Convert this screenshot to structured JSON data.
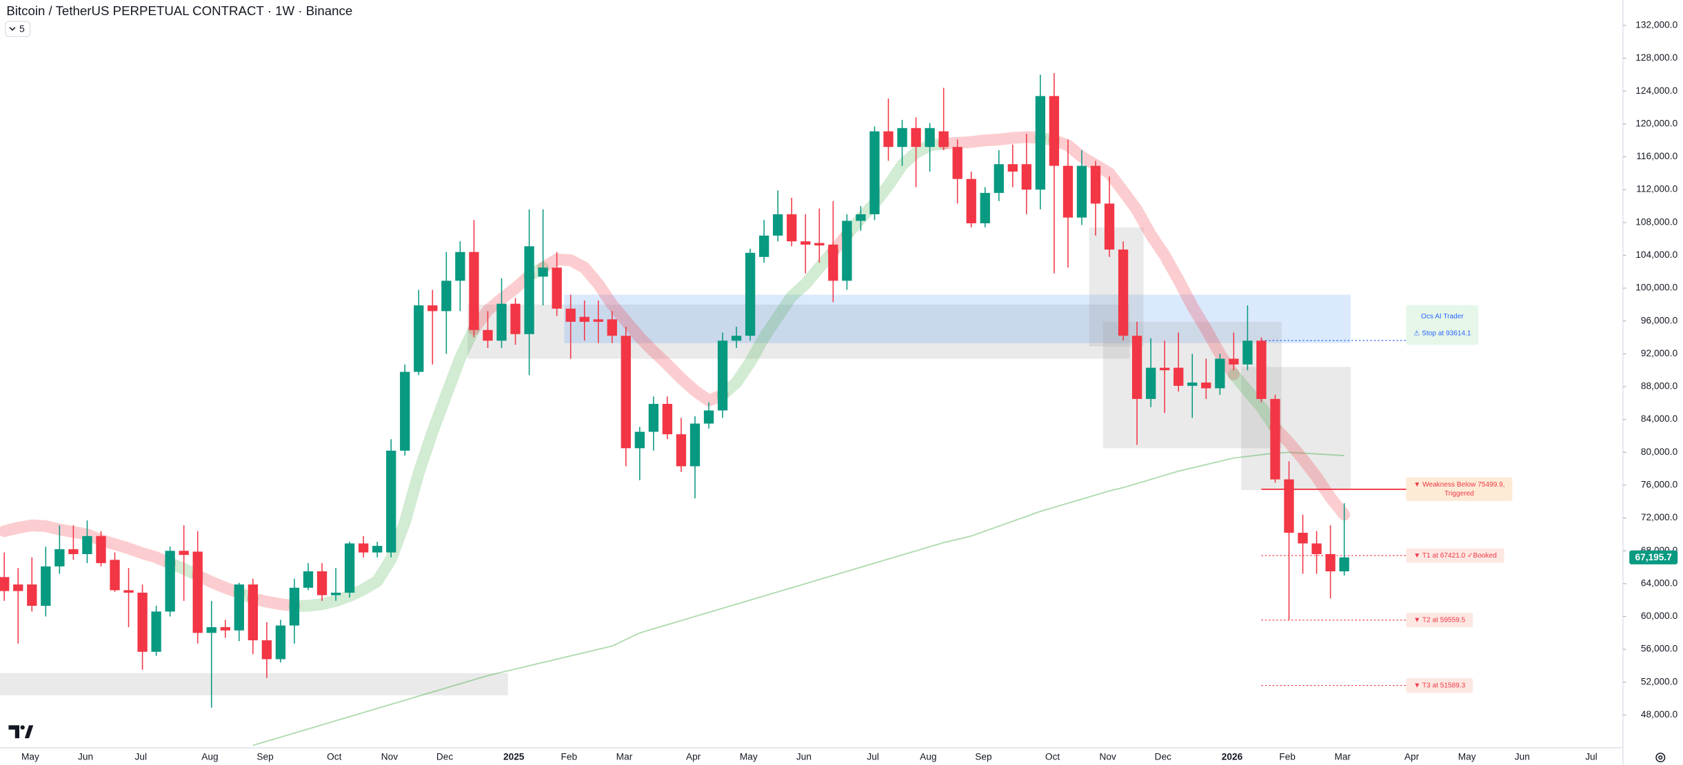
{
  "chart_data": {
    "type": "candlestick",
    "title": "Bitcoin / TetherUS PERPETUAL CONTRACT · 1W · Binance",
    "indicator_count": 5,
    "up_color": "#089981",
    "down_color": "#f23645",
    "grid": false,
    "ylim": [
      44000,
      135100
    ],
    "yticks": [
      {
        "value": 48000,
        "label": "48,000.0"
      },
      {
        "value": 52000,
        "label": "52,000.0"
      },
      {
        "value": 56000,
        "label": "56,000.0"
      },
      {
        "value": 60000,
        "label": "60,000.0"
      },
      {
        "value": 64000,
        "label": "64,000.0"
      },
      {
        "value": 68000,
        "label": "68,000.0"
      },
      {
        "value": 72000,
        "label": "72,000.0"
      },
      {
        "value": 76000,
        "label": "76,000.0"
      },
      {
        "value": 80000,
        "label": "80,000.0"
      },
      {
        "value": 84000,
        "label": "84,000.0"
      },
      {
        "value": 88000,
        "label": "88,000.0"
      },
      {
        "value": 92000,
        "label": "92,000.0"
      },
      {
        "value": 96000,
        "label": "96,000.0"
      },
      {
        "value": 100000,
        "label": "100,000.0"
      },
      {
        "value": 104000,
        "label": "104,000.0"
      },
      {
        "value": 108000,
        "label": "108,000.0"
      },
      {
        "value": 112000,
        "label": "112,000.0"
      },
      {
        "value": 116000,
        "label": "116,000.0"
      },
      {
        "value": 120000,
        "label": "120,000.0"
      },
      {
        "value": 124000,
        "label": "124,000.0"
      },
      {
        "value": 128000,
        "label": "128,000.0"
      },
      {
        "value": 132000,
        "label": "132,000.0"
      }
    ],
    "categories": [
      null,
      null,
      "May",
      null,
      null,
      null,
      "Jun",
      null,
      null,
      null,
      "Jul",
      null,
      null,
      null,
      null,
      "Aug",
      null,
      null,
      null,
      "Sep",
      null,
      null,
      null,
      null,
      "Oct",
      null,
      null,
      null,
      "Nov",
      null,
      null,
      null,
      "Dec",
      null,
      null,
      null,
      null,
      "2025",
      null,
      null,
      null,
      "Feb",
      null,
      null,
      null,
      "Mar",
      null,
      null,
      null,
      null,
      "Apr",
      null,
      null,
      null,
      "May",
      null,
      null,
      null,
      "Jun",
      null,
      null,
      null,
      null,
      "Jul",
      null,
      null,
      null,
      "Aug",
      null,
      null,
      null,
      "Sep",
      null,
      null,
      null,
      null,
      "Oct",
      null,
      null,
      null,
      "Nov",
      null,
      null,
      null,
      "Dec",
      null,
      null,
      null,
      null,
      "2026",
      null,
      null,
      null,
      "Feb",
      null,
      null,
      null,
      "Mar",
      null,
      null,
      null,
      null,
      "Apr",
      null,
      null,
      null,
      "May",
      null,
      null,
      null,
      "Jun",
      null,
      null,
      null,
      null,
      "Jul",
      null
    ],
    "open": [
      64800,
      63900,
      63900,
      61300,
      66100,
      68200,
      67600,
      69800,
      66900,
      63200,
      62900,
      55700,
      60600,
      68000,
      67900,
      58000,
      58700,
      58300,
      63900,
      57100,
      54800,
      58900,
      63500,
      65500,
      62600,
      62900,
      68900,
      67800,
      67800,
      80200,
      89800,
      97900,
      97200,
      100900,
      104400,
      94900,
      93600,
      98100,
      94400,
      101400,
      102500,
      97500,
      96500,
      96200,
      96200,
      94200,
      80500,
      82500,
      85900,
      82200,
      78300,
      83500,
      85100,
      93600,
      94200,
      103800,
      106400,
      109000,
      105700,
      105500,
      105300,
      100900,
      108200,
      109000,
      119100,
      117200,
      119500,
      117200,
      119100,
      117200,
      113300,
      107900,
      111600,
      115100,
      115100,
      112000,
      123400,
      114900,
      108600,
      114900,
      110300,
      104700,
      94200,
      86500,
      90300,
      90300,
      88100,
      88500,
      87800,
      91400,
      90700,
      93600,
      86500,
      76700,
      70200,
      68900,
      67600,
      65500,
      null,
      null,
      null,
      null,
      null,
      null,
      null,
      null,
      null,
      null,
      null,
      null,
      null,
      null,
      null,
      null,
      null,
      null,
      null
    ],
    "high": [
      67800,
      65900,
      67200,
      68500,
      71100,
      71100,
      71700,
      70400,
      67800,
      65900,
      63900,
      61300,
      68500,
      71100,
      70400,
      61900,
      59600,
      64100,
      64600,
      59300,
      59600,
      64600,
      66500,
      66500,
      65900,
      69100,
      69800,
      69100,
      81600,
      90700,
      99800,
      99800,
      104400,
      105700,
      108300,
      97200,
      101200,
      98800,
      109600,
      109600,
      104400,
      99200,
      98500,
      98500,
      97200,
      95300,
      83100,
      86800,
      86800,
      84200,
      84400,
      86100,
      94600,
      95300,
      104800,
      108300,
      111900,
      111000,
      109000,
      109700,
      110600,
      109000,
      110000,
      119700,
      123100,
      120500,
      120800,
      120100,
      124400,
      118100,
      114200,
      112300,
      116800,
      117500,
      118800,
      126000,
      126200,
      118100,
      116800,
      115500,
      113600,
      105700,
      95900,
      93900,
      93600,
      94600,
      92000,
      91400,
      92000,
      94600,
      97900,
      94000,
      87000,
      78900,
      72400,
      70400,
      71100,
      73800,
      null,
      null,
      null,
      null,
      null,
      null,
      null,
      null,
      null,
      null,
      null,
      null,
      null,
      null,
      null,
      null,
      null,
      null,
      null
    ],
    "low": [
      61900,
      56700,
      60600,
      60000,
      65200,
      66900,
      66500,
      66100,
      63000,
      58700,
      53500,
      55200,
      60000,
      61900,
      56700,
      48900,
      57400,
      57000,
      55400,
      52500,
      54400,
      56700,
      63200,
      61900,
      61900,
      62300,
      67200,
      67200,
      67200,
      79600,
      89400,
      90700,
      92000,
      97200,
      94000,
      92700,
      92700,
      93100,
      89400,
      97900,
      96600,
      91400,
      93600,
      93300,
      93300,
      78300,
      76600,
      80200,
      81600,
      77600,
      74400,
      82900,
      84200,
      92700,
      93600,
      103100,
      105700,
      105100,
      101800,
      103100,
      98300,
      99800,
      107000,
      108300,
      115500,
      114900,
      112300,
      114200,
      116800,
      110300,
      107400,
      107400,
      110600,
      112300,
      109000,
      109600,
      101800,
      102500,
      107700,
      106400,
      103800,
      93600,
      80900,
      85500,
      84800,
      87400,
      84200,
      86500,
      87000,
      90000,
      90000,
      86100,
      76300,
      59600,
      65200,
      65200,
      62200,
      65000,
      null,
      null,
      null,
      null,
      null,
      null,
      null,
      null,
      null,
      null,
      null,
      null,
      null,
      null,
      null,
      null,
      null,
      null,
      null
    ],
    "close": [
      63100,
      63100,
      61300,
      66100,
      68200,
      67600,
      69800,
      66500,
      63200,
      62900,
      55700,
      60600,
      68000,
      67500,
      58000,
      58700,
      58300,
      63900,
      57100,
      54800,
      58900,
      63500,
      65500,
      62600,
      62900,
      68900,
      67800,
      68600,
      80200,
      89800,
      97900,
      97200,
      100900,
      104400,
      94900,
      93600,
      98100,
      94400,
      105100,
      102500,
      97500,
      95900,
      95900,
      95900,
      94200,
      80500,
      82500,
      85900,
      82200,
      78300,
      83500,
      85100,
      93600,
      94200,
      104300,
      106400,
      109000,
      105700,
      105300,
      105200,
      100900,
      108200,
      109000,
      119100,
      117200,
      119500,
      117200,
      119500,
      117200,
      113300,
      107900,
      111600,
      115100,
      114200,
      112000,
      123400,
      114900,
      108600,
      114900,
      110300,
      104700,
      94200,
      86500,
      90300,
      90000,
      88100,
      88500,
      87800,
      91400,
      90700,
      93600,
      86500,
      76700,
      70200,
      68900,
      67600,
      65500,
      67195.7,
      null,
      null,
      null,
      null,
      null,
      null,
      null,
      null,
      null,
      null,
      null,
      null,
      null,
      null,
      null,
      null,
      null,
      null,
      null
    ],
    "last_price_label": "67,195.7",
    "last_price_color": "#089981",
    "ribbon": {
      "colors": [
        "#4caf50",
        "#f23645"
      ],
      "values": [
        70400,
        70800,
        71100,
        71000,
        70600,
        70300,
        70000,
        69300,
        68800,
        68300,
        67700,
        67200,
        66500,
        65800,
        65000,
        64200,
        63500,
        62900,
        62200,
        61800,
        61500,
        61300,
        61300,
        61500,
        61900,
        62500,
        63300,
        64300,
        67000,
        71500,
        77500,
        82500,
        87000,
        91500,
        95000,
        97300,
        98700,
        100000,
        101500,
        102500,
        103500,
        103400,
        102500,
        100500,
        98000,
        96000,
        94000,
        92300,
        90700,
        89000,
        87500,
        86300,
        87000,
        88500,
        91000,
        94000,
        96500,
        99000,
        100500,
        102500,
        104500,
        106500,
        108500,
        110300,
        112500,
        115000,
        116500,
        117400,
        117600,
        117700,
        117800,
        118000,
        118100,
        118300,
        118400,
        118300,
        118000,
        117400,
        116000,
        115000,
        114000,
        111800,
        109500,
        106500,
        104000,
        101000,
        97800,
        95000,
        92000,
        89500,
        87500,
        85500,
        83000,
        81200,
        79200,
        77000,
        74500,
        72400,
        null,
        null,
        null,
        null,
        null,
        null,
        null,
        null,
        null,
        null,
        null,
        null,
        null,
        null,
        null,
        null,
        null,
        null,
        null
      ]
    },
    "ma": {
      "color": "#4caf50",
      "values": [
        null,
        null,
        null,
        null,
        null,
        null,
        null,
        null,
        null,
        null,
        null,
        null,
        null,
        null,
        null,
        null,
        null,
        null,
        44300,
        44800,
        45300,
        45800,
        46300,
        46800,
        47300,
        47800,
        48300,
        48800,
        49300,
        49800,
        50300,
        50800,
        51300,
        51800,
        52300,
        52800,
        53200,
        53600,
        54000,
        54400,
        54800,
        55200,
        55600,
        56000,
        56400,
        57200,
        58000,
        58500,
        59000,
        59500,
        60000,
        60500,
        61000,
        61500,
        62000,
        62500,
        63000,
        63500,
        64000,
        64500,
        65000,
        65500,
        66000,
        66500,
        67000,
        67500,
        68000,
        68500,
        69000,
        69400,
        69800,
        70400,
        71000,
        71600,
        72200,
        72800,
        73300,
        73800,
        74300,
        74800,
        75300,
        75700,
        76200,
        76700,
        77200,
        77700,
        78100,
        78500,
        78900,
        79300,
        79500,
        79700,
        79900,
        80000,
        79900,
        79800,
        79700,
        79600,
        null,
        null,
        null,
        null,
        null,
        null,
        null,
        null,
        null,
        null,
        null,
        null,
        null,
        null,
        null,
        null,
        null,
        null,
        null
      ]
    },
    "zones": [
      {
        "start": 0,
        "end": 36,
        "top": 53100,
        "bottom": 50400,
        "color": "#9e9e9e"
      },
      {
        "start": 34,
        "end": 81,
        "top": 98000,
        "bottom": 91400,
        "color": "#9e9e9e"
      },
      {
        "start": 41,
        "end": 97,
        "top": 99200,
        "bottom": 93300,
        "color": "#5b9cf6"
      },
      {
        "start": 79,
        "end": 82,
        "top": 107400,
        "bottom": 92900,
        "color": "#9e9e9e"
      },
      {
        "start": 80,
        "end": 92,
        "top": 95900,
        "bottom": 80500,
        "color": "#9e9e9e"
      },
      {
        "start": 90,
        "end": 97,
        "top": 90400,
        "bottom": 75400,
        "color": "#9e9e9e"
      }
    ],
    "levels": [
      {
        "value": 93614.1,
        "start": 91,
        "end": 100,
        "color": "#2962ff",
        "dash": true,
        "box": "#e6f7e9",
        "header": "Ocs AI Trader",
        "label": [
          "⚠ Stop at 93614.1"
        ]
      },
      {
        "value": 75499.9,
        "start": 91,
        "end": 100,
        "color": "#f23645",
        "dash": false,
        "box": "#fdebd6",
        "label": [
          "▼ Weakness Below 75499.9,",
          "Triggered"
        ]
      },
      {
        "value": 67421.0,
        "start": 91,
        "end": 100,
        "color": "#f23645",
        "dash": true,
        "box": "#fde7e2",
        "label": [
          "▼ T1 at 67421.0 ✓Booked"
        ]
      },
      {
        "value": 59559.5,
        "start": 91,
        "end": 100,
        "color": "#f23645",
        "dash": true,
        "box": "#fde7e2",
        "label": [
          "▼ T2 at 59559.5"
        ]
      },
      {
        "value": 51589.3,
        "start": 91,
        "end": 100,
        "color": "#f23645",
        "dash": true,
        "box": "#fde7e2",
        "label": [
          "▼ T3 at 51589.3"
        ]
      }
    ]
  }
}
